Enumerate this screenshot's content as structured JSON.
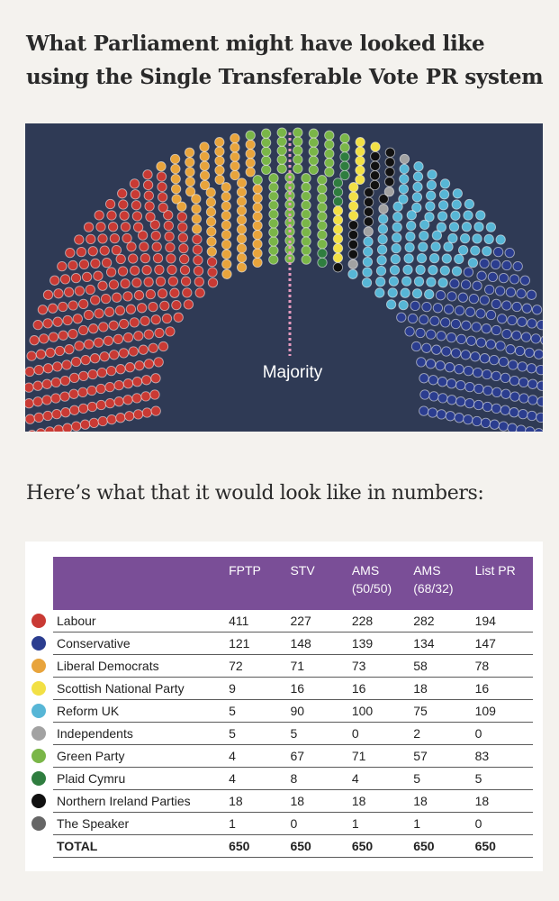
{
  "title_lines": [
    "What Parliament might have looked like",
    "using the Single Transferable Vote PR system"
  ],
  "subtitle": "Here’s what that it would look like in numbers:",
  "chart_data": {
    "type": "parliament",
    "title": "What Parliament might have looked like using the Single Transferable Vote PR system",
    "total_seats": 650,
    "majority_label": "Majority",
    "background": "#2f3a55",
    "series": [
      {
        "name": "Labour",
        "seats": 227,
        "color": "#c93a34"
      },
      {
        "name": "Liberal Democrats",
        "seats": 71,
        "color": "#e8a43c"
      },
      {
        "name": "Green Party",
        "seats": 67,
        "color": "#7ab648"
      },
      {
        "name": "Plaid Cymru",
        "seats": 8,
        "color": "#2f7d3f"
      },
      {
        "name": "Scottish National Party",
        "seats": 16,
        "color": "#f2e045"
      },
      {
        "name": "Northern Ireland Parties",
        "seats": 18,
        "color": "#111111"
      },
      {
        "name": "Independents",
        "seats": 5,
        "color": "#a2a2a2"
      },
      {
        "name": "The Speaker",
        "seats": 0,
        "color": "#666666"
      },
      {
        "name": "Reform UK",
        "seats": 90,
        "color": "#57b6d6"
      },
      {
        "name": "Conservative",
        "seats": 148,
        "color": "#2b3d8f"
      }
    ]
  },
  "table": {
    "columns": [
      {
        "label": "FPTP",
        "sub": ""
      },
      {
        "label": "STV",
        "sub": ""
      },
      {
        "label": "AMS",
        "sub": "(50/50)"
      },
      {
        "label": "AMS",
        "sub": "(68/32)"
      },
      {
        "label": "List PR",
        "sub": ""
      }
    ],
    "rows": [
      {
        "party": "Labour",
        "color": "#c93a34",
        "values": [
          "411",
          "227",
          "228",
          "282",
          "194"
        ]
      },
      {
        "party": "Conservative",
        "color": "#2b3d8f",
        "values": [
          "121",
          "148",
          "139",
          "134",
          "147"
        ]
      },
      {
        "party": "Liberal Democrats",
        "color": "#e8a43c",
        "values": [
          "72",
          "71",
          "73",
          "58",
          "78"
        ]
      },
      {
        "party": "Scottish National Party",
        "color": "#f2e045",
        "values": [
          "9",
          "16",
          "16",
          "18",
          "16"
        ]
      },
      {
        "party": "Reform UK",
        "color": "#57b6d6",
        "values": [
          "5",
          "90",
          "100",
          "75",
          "109"
        ]
      },
      {
        "party": "Independents",
        "color": "#a2a2a2",
        "values": [
          "5",
          "5",
          "0",
          "2",
          "0"
        ]
      },
      {
        "party": "Green Party",
        "color": "#7ab648",
        "values": [
          "4",
          "67",
          "71",
          "57",
          "83"
        ]
      },
      {
        "party": "Plaid Cymru",
        "color": "#2f7d3f",
        "values": [
          "4",
          "8",
          "4",
          "5",
          "5"
        ]
      },
      {
        "party": "Northern Ireland Parties",
        "color": "#111111",
        "values": [
          "18",
          "18",
          "18",
          "18",
          "18"
        ]
      },
      {
        "party": "The Speaker",
        "color": "#666666",
        "values": [
          "1",
          "0",
          "1",
          "1",
          "0"
        ]
      }
    ],
    "total": {
      "label": "TOTAL",
      "values": [
        "650",
        "650",
        "650",
        "650",
        "650"
      ]
    }
  }
}
